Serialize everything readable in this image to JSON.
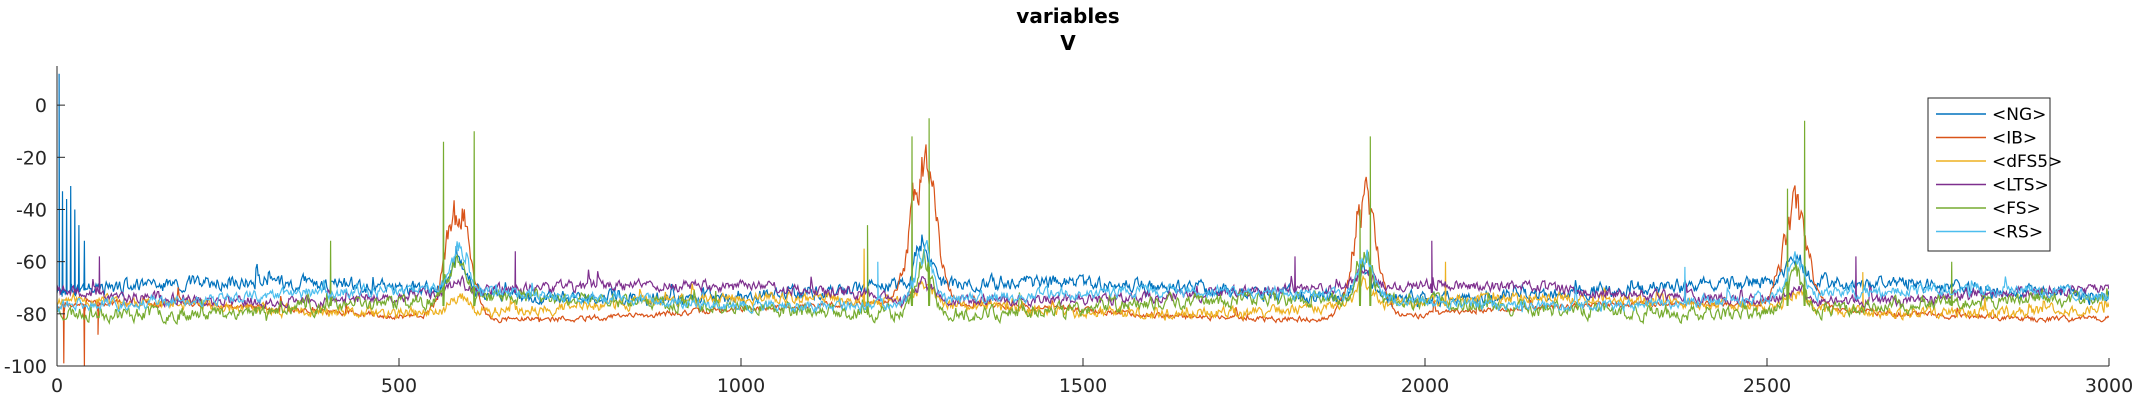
{
  "chart_data": {
    "type": "line",
    "title": "variables",
    "subtitle": "V",
    "xlabel": "",
    "ylabel": "",
    "xlim": [
      0,
      3000
    ],
    "ylim": [
      -100,
      15
    ],
    "xticks": [
      0,
      500,
      1000,
      1500,
      2000,
      2500,
      3000
    ],
    "yticks": [
      -100,
      -80,
      -60,
      -40,
      -20,
      0
    ],
    "grid": false,
    "legend_position": "top-right",
    "series": [
      {
        "name": "<NG>",
        "color": "#0072BD",
        "baseline": -71,
        "noise": 5,
        "bursts": [
          [
            585,
            12,
            -58
          ],
          [
            1265,
            12,
            -52
          ],
          [
            1910,
            12,
            -58
          ],
          [
            2540,
            12,
            -60
          ]
        ],
        "spikes": [
          [
            3,
            12
          ],
          [
            8,
            -33
          ],
          [
            14,
            -36
          ],
          [
            20,
            -31
          ],
          [
            26,
            -40
          ],
          [
            32,
            -46
          ],
          [
            40,
            -52
          ]
        ],
        "seed": 3
      },
      {
        "name": "<IB>",
        "color": "#D95319",
        "baseline": -79,
        "noise": 2,
        "bursts": [
          [
            585,
            18,
            -32
          ],
          [
            1265,
            18,
            -17
          ],
          [
            1910,
            18,
            -27
          ],
          [
            2540,
            18,
            -37
          ]
        ],
        "spikes": [
          [
            10,
            -99
          ],
          [
            40,
            -101
          ],
          [
            60,
            -88
          ]
        ],
        "seed": 7
      },
      {
        "name": "<dFS5>",
        "color": "#EDB120",
        "baseline": -77,
        "noise": 4,
        "bursts": [
          [
            585,
            12,
            -70
          ],
          [
            1265,
            12,
            -66
          ],
          [
            1910,
            12,
            -68
          ],
          [
            2540,
            12,
            -68
          ]
        ],
        "spikes": [
          [
            1180,
            -55
          ],
          [
            2030,
            -60
          ],
          [
            2640,
            -64
          ]
        ],
        "seed": 11
      },
      {
        "name": "<LTS>",
        "color": "#7E2F8E",
        "baseline": -72,
        "noise": 4,
        "bursts": [
          [
            585,
            12,
            -66
          ],
          [
            1265,
            12,
            -64
          ],
          [
            1910,
            12,
            -66
          ],
          [
            2540,
            12,
            -66
          ]
        ],
        "spikes": [
          [
            62,
            -58
          ],
          [
            670,
            -56
          ],
          [
            1810,
            -58
          ],
          [
            2010,
            -52
          ],
          [
            2630,
            -58
          ]
        ],
        "seed": 19
      },
      {
        "name": "<FS>",
        "color": "#77AC30",
        "baseline": -77,
        "noise": 5,
        "bursts": [
          [
            585,
            12,
            -60
          ],
          [
            1265,
            12,
            -55
          ],
          [
            1910,
            12,
            -58
          ],
          [
            2540,
            12,
            -58
          ]
        ],
        "spikes": [
          [
            400,
            -52
          ],
          [
            565,
            -14
          ],
          [
            610,
            -10
          ],
          [
            1185,
            -46
          ],
          [
            1250,
            -12
          ],
          [
            1275,
            -5
          ],
          [
            1905,
            -40
          ],
          [
            1920,
            -12
          ],
          [
            2530,
            -32
          ],
          [
            2555,
            -6
          ],
          [
            2770,
            -60
          ]
        ],
        "seed": 23
      },
      {
        "name": "<RS>",
        "color": "#4DBEEE",
        "baseline": -74,
        "noise": 4,
        "bursts": [
          [
            585,
            12,
            -56
          ],
          [
            1265,
            12,
            -50
          ],
          [
            1910,
            12,
            -56
          ],
          [
            2540,
            12,
            -56
          ]
        ],
        "spikes": [
          [
            1200,
            -60
          ],
          [
            2380,
            -62
          ]
        ],
        "seed": 31
      }
    ]
  }
}
